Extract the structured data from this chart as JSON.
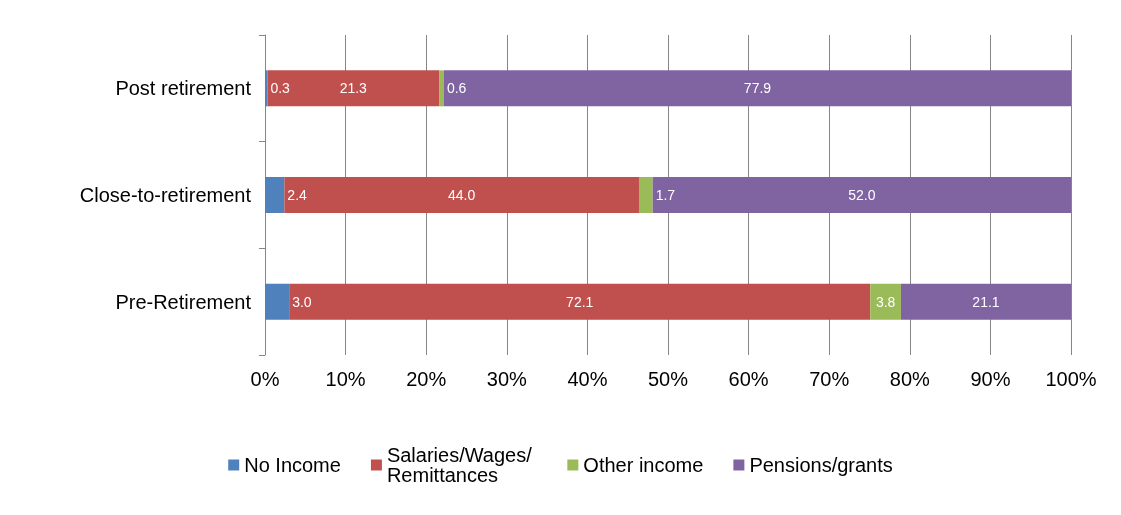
{
  "chart_data": {
    "type": "bar",
    "orientation": "horizontal",
    "stacked": true,
    "categories": [
      "Post retirement",
      "Close-to-retirement",
      "Pre-Retirement"
    ],
    "series": [
      {
        "name": "No Income",
        "color": "#4f81bd",
        "values": [
          0.3,
          2.4,
          3.0
        ],
        "value_labels": [
          "0.3",
          "2.4",
          "3.0"
        ]
      },
      {
        "name": "Salaries/Wages/ Remittances",
        "color": "#c0504d",
        "values": [
          21.3,
          44.0,
          72.1
        ],
        "value_labels": [
          "21.3",
          "44.0",
          "72.1"
        ]
      },
      {
        "name": "Other income",
        "color": "#9bbb59",
        "values": [
          0.6,
          1.7,
          3.8
        ],
        "value_labels": [
          "0.6",
          "1.7",
          "3.8"
        ]
      },
      {
        "name": "Pensions/grants",
        "color": "#8064a2",
        "values": [
          77.9,
          52.0,
          21.1
        ],
        "value_labels": [
          "77.9",
          "52.0",
          "21.1"
        ]
      }
    ],
    "xlim": [
      0,
      100
    ],
    "xticks": [
      {
        "value": 0,
        "label": "0%"
      },
      {
        "value": 10,
        "label": "10%"
      },
      {
        "value": 20,
        "label": "20%"
      },
      {
        "value": 30,
        "label": "30%"
      },
      {
        "value": 40,
        "label": "40%"
      },
      {
        "value": 50,
        "label": "50%"
      },
      {
        "value": 60,
        "label": "60%"
      },
      {
        "value": 70,
        "label": "70%"
      },
      {
        "value": 80,
        "label": "80%"
      },
      {
        "value": 90,
        "label": "90%"
      },
      {
        "value": 100,
        "label": "100%"
      }
    ],
    "grid": "x",
    "legend": "bottom"
  }
}
